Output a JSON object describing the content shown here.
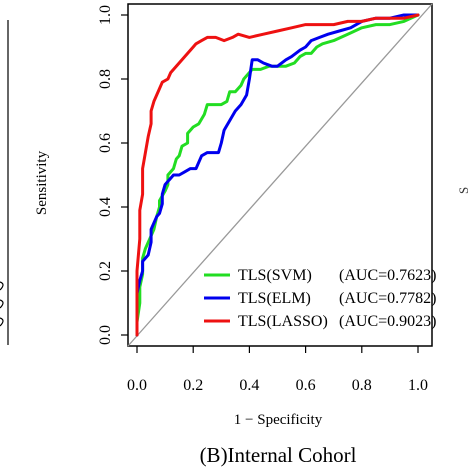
{
  "chart_data": {
    "type": "line",
    "caption": "(B)Internal Cohorl",
    "xlabel": "1 − Specificity",
    "ylabel": "Sensitivity",
    "xlim": [
      0.0,
      1.0
    ],
    "ylim": [
      0.0,
      1.0
    ],
    "xticks": [
      "0.0",
      "0.2",
      "0.4",
      "0.6",
      "0.8",
      "1.0"
    ],
    "yticks": [
      "0.0",
      "0.2",
      "0.4",
      "0.6",
      "0.8",
      "1.0"
    ],
    "grid": false,
    "legend_position": "bottom-right",
    "diagonal_reference": true,
    "series": [
      {
        "name": "TLS(SVM)",
        "auc_label": "(AUC=0.7623)",
        "color": "#22dd22",
        "x": [
          0.0,
          0.0,
          0.01,
          0.01,
          0.02,
          0.02,
          0.03,
          0.05,
          0.06,
          0.07,
          0.08,
          0.08,
          0.1,
          0.11,
          0.11,
          0.13,
          0.14,
          0.15,
          0.16,
          0.18,
          0.18,
          0.2,
          0.22,
          0.24,
          0.25,
          0.27,
          0.3,
          0.32,
          0.33,
          0.35,
          0.37,
          0.38,
          0.39,
          0.41,
          0.44,
          0.47,
          0.5,
          0.53,
          0.56,
          0.58,
          0.6,
          0.62,
          0.64,
          0.66,
          0.7,
          0.75,
          0.8,
          0.85,
          0.9,
          0.95,
          1.0
        ],
        "y": [
          0.0,
          0.04,
          0.1,
          0.15,
          0.19,
          0.24,
          0.27,
          0.31,
          0.33,
          0.37,
          0.4,
          0.42,
          0.45,
          0.47,
          0.5,
          0.52,
          0.55,
          0.56,
          0.59,
          0.6,
          0.63,
          0.65,
          0.66,
          0.69,
          0.72,
          0.72,
          0.72,
          0.73,
          0.76,
          0.76,
          0.78,
          0.8,
          0.81,
          0.83,
          0.83,
          0.84,
          0.84,
          0.84,
          0.85,
          0.87,
          0.88,
          0.88,
          0.9,
          0.91,
          0.92,
          0.94,
          0.96,
          0.97,
          0.97,
          0.98,
          1.0
        ]
      },
      {
        "name": "TLS(ELM)",
        "auc_label": "(AUC=0.7782)",
        "color": "#0000ee",
        "x": [
          0.0,
          0.0,
          0.01,
          0.02,
          0.02,
          0.04,
          0.05,
          0.05,
          0.06,
          0.07,
          0.08,
          0.09,
          0.09,
          0.1,
          0.11,
          0.12,
          0.13,
          0.15,
          0.17,
          0.19,
          0.21,
          0.23,
          0.25,
          0.27,
          0.29,
          0.3,
          0.31,
          0.33,
          0.35,
          0.37,
          0.39,
          0.4,
          0.41,
          0.43,
          0.45,
          0.48,
          0.5,
          0.53,
          0.55,
          0.58,
          0.6,
          0.62,
          0.65,
          0.68,
          0.72,
          0.76,
          0.8,
          0.85,
          0.9,
          0.95,
          1.0
        ],
        "y": [
          0.0,
          0.13,
          0.17,
          0.2,
          0.23,
          0.25,
          0.29,
          0.33,
          0.35,
          0.37,
          0.38,
          0.41,
          0.44,
          0.47,
          0.48,
          0.49,
          0.5,
          0.5,
          0.51,
          0.52,
          0.52,
          0.56,
          0.57,
          0.57,
          0.57,
          0.6,
          0.64,
          0.67,
          0.7,
          0.72,
          0.75,
          0.8,
          0.86,
          0.86,
          0.85,
          0.84,
          0.84,
          0.86,
          0.87,
          0.89,
          0.9,
          0.92,
          0.93,
          0.94,
          0.95,
          0.96,
          0.98,
          0.99,
          0.99,
          1.0,
          1.0
        ]
      },
      {
        "name": "TLS(LASSO)",
        "auc_label": "(AUC=0.9023)",
        "color": "#ee1111",
        "x": [
          0.0,
          0.0,
          0.01,
          0.01,
          0.02,
          0.02,
          0.03,
          0.04,
          0.05,
          0.05,
          0.06,
          0.07,
          0.08,
          0.09,
          0.11,
          0.12,
          0.14,
          0.16,
          0.18,
          0.2,
          0.21,
          0.23,
          0.25,
          0.28,
          0.31,
          0.34,
          0.36,
          0.4,
          0.45,
          0.5,
          0.55,
          0.6,
          0.65,
          0.7,
          0.75,
          0.8,
          0.85,
          0.9,
          0.95,
          1.0
        ],
        "y": [
          0.0,
          0.2,
          0.3,
          0.39,
          0.44,
          0.52,
          0.57,
          0.62,
          0.66,
          0.7,
          0.73,
          0.75,
          0.77,
          0.79,
          0.8,
          0.82,
          0.84,
          0.86,
          0.88,
          0.9,
          0.91,
          0.92,
          0.93,
          0.93,
          0.92,
          0.93,
          0.94,
          0.93,
          0.94,
          0.95,
          0.96,
          0.97,
          0.97,
          0.97,
          0.98,
          0.98,
          0.99,
          0.99,
          0.99,
          1.0
        ]
      }
    ]
  },
  "colors": {
    "diagonal": "#999999",
    "axis": "#000000"
  }
}
